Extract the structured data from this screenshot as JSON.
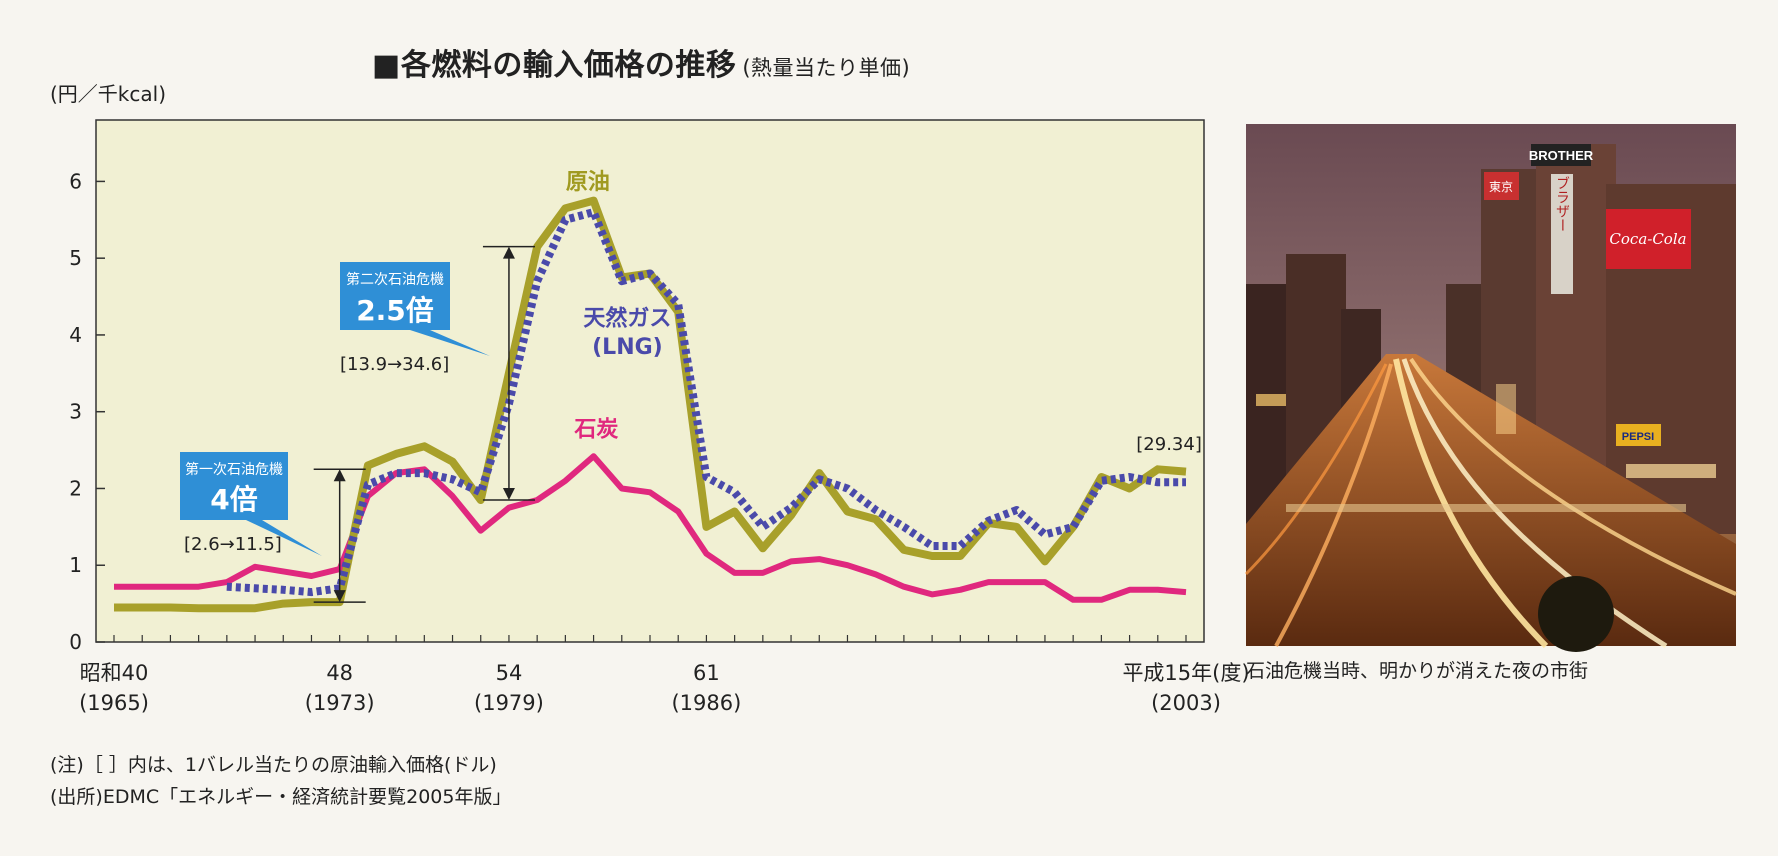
{
  "title": "■各燃料の輸入価格の推移",
  "subtitle": "(熱量当たり単価)",
  "unit_label": "(円／千kcal)",
  "chart_data": {
    "type": "line",
    "ylim": [
      0,
      6.8
    ],
    "y_ticks": [
      0,
      1,
      2,
      3,
      4,
      5,
      6
    ],
    "x_range": [
      1965,
      2003
    ],
    "x_ticks": [
      {
        "x": 1965,
        "label": "昭和40",
        "sub": "(1965)"
      },
      {
        "x": 1973,
        "label": "48",
        "sub": "(1973)"
      },
      {
        "x": 1979,
        "label": "54",
        "sub": "(1979)"
      },
      {
        "x": 1986,
        "label": "61",
        "sub": "(1986)"
      },
      {
        "x": 2003,
        "label": "平成15年(度)",
        "sub": "(2003)"
      }
    ],
    "grid": false,
    "series": [
      {
        "name": "原油",
        "color": "#a8a02a",
        "style": "solid",
        "x": [
          1965,
          1966,
          1967,
          1968,
          1969,
          1970,
          1971,
          1972,
          1973,
          1974,
          1975,
          1976,
          1977,
          1978,
          1979,
          1980,
          1981,
          1982,
          1983,
          1984,
          1985,
          1986,
          1987,
          1988,
          1989,
          1990,
          1991,
          1992,
          1993,
          1994,
          1995,
          1996,
          1997,
          1998,
          1999,
          2000,
          2001,
          2002,
          2003
        ],
        "values": [
          0.45,
          0.45,
          0.45,
          0.44,
          0.44,
          0.44,
          0.5,
          0.52,
          0.52,
          2.3,
          2.45,
          2.55,
          2.35,
          1.85,
          3.5,
          5.15,
          5.65,
          5.75,
          4.75,
          4.8,
          4.3,
          1.5,
          1.7,
          1.22,
          1.65,
          2.2,
          1.7,
          1.6,
          1.2,
          1.12,
          1.12,
          1.55,
          1.5,
          1.05,
          1.5,
          2.15,
          2.0,
          2.25,
          2.22
        ]
      },
      {
        "name": "天然ガス (LNG)",
        "color": "#4a4aaa",
        "style": "dotted",
        "x": [
          1969,
          1970,
          1971,
          1972,
          1973,
          1974,
          1975,
          1976,
          1977,
          1978,
          1979,
          1980,
          1981,
          1982,
          1983,
          1984,
          1985,
          1986,
          1987,
          1988,
          1989,
          1990,
          1991,
          1992,
          1993,
          1994,
          1995,
          1996,
          1997,
          1998,
          1999,
          2000,
          2001,
          2002,
          2003
        ],
        "values": [
          0.72,
          0.7,
          0.68,
          0.65,
          0.7,
          2.05,
          2.2,
          2.2,
          2.12,
          1.95,
          3.1,
          4.7,
          5.5,
          5.6,
          4.7,
          4.8,
          4.4,
          2.15,
          1.95,
          1.5,
          1.75,
          2.12,
          2.0,
          1.72,
          1.5,
          1.25,
          1.25,
          1.58,
          1.72,
          1.4,
          1.5,
          2.1,
          2.15,
          2.08,
          2.08
        ]
      },
      {
        "name": "石炭",
        "color": "#e0287e",
        "style": "solid",
        "x": [
          1965,
          1966,
          1967,
          1968,
          1969,
          1970,
          1971,
          1972,
          1973,
          1974,
          1975,
          1976,
          1977,
          1978,
          1979,
          1980,
          1981,
          1982,
          1983,
          1984,
          1985,
          1986,
          1987,
          1988,
          1989,
          1990,
          1991,
          1992,
          1993,
          1994,
          1995,
          1996,
          1997,
          1998,
          1999,
          2000,
          2001,
          2002,
          2003
        ],
        "values": [
          0.72,
          0.72,
          0.72,
          0.72,
          0.78,
          0.98,
          0.92,
          0.86,
          0.95,
          1.9,
          2.2,
          2.25,
          1.9,
          1.45,
          1.75,
          1.85,
          2.1,
          2.42,
          2.0,
          1.95,
          1.7,
          1.15,
          0.9,
          0.9,
          1.05,
          1.08,
          1.0,
          0.88,
          0.72,
          0.62,
          0.68,
          0.78,
          0.78,
          0.78,
          0.55,
          0.55,
          0.68,
          0.68,
          0.65
        ]
      }
    ],
    "annotations": [
      {
        "box_label": "第一次石油危機",
        "box_value": "4倍",
        "bracket": "[2.6→11.5]",
        "from": 0.52,
        "to": 2.25,
        "x": 1973
      },
      {
        "box_label": "第二次石油危機",
        "box_value": "2.5倍",
        "bracket": "[13.9→34.6]",
        "from": 1.85,
        "to": 5.15,
        "x": 1979
      },
      {
        "text": "[29.34]",
        "x": 2003
      }
    ]
  },
  "notes": [
    "(注)［ ］内は、1バレル当たりの原油輸入価格(ドル)",
    "(出所)EDMC「エネルギー・経済統計要覧2005年版」"
  ],
  "photo": {
    "caption": "石油危機当時、明かりが消えた夜の市街",
    "signs": [
      "BROTHER",
      "Coca-Cola",
      "PEPSI",
      "東京",
      "ブラザー"
    ]
  }
}
